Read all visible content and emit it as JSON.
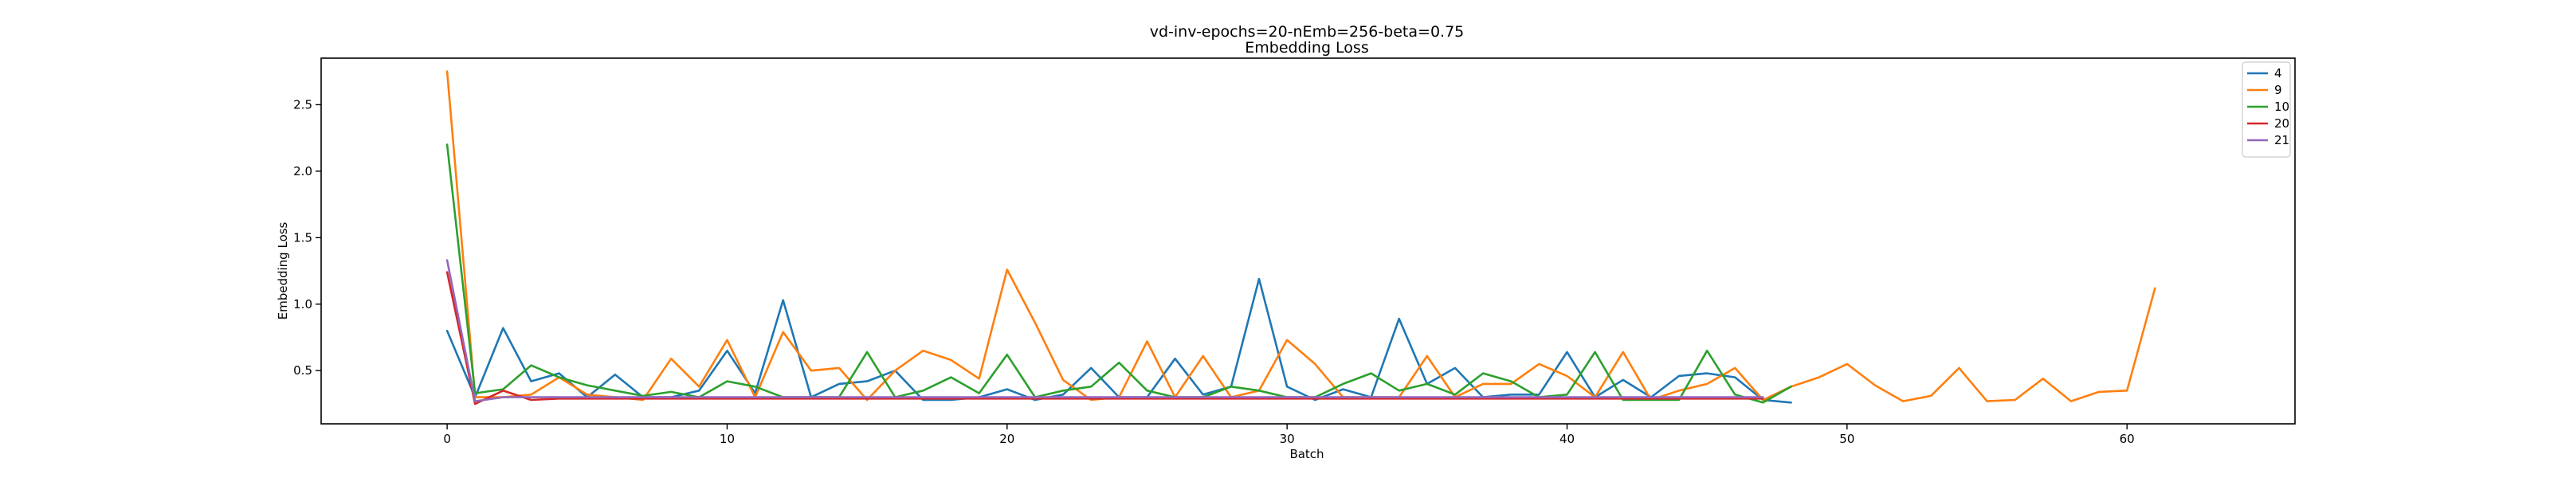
{
  "chart_data": {
    "type": "line",
    "title": "vd-inv-epochs=20-nEmb=256-beta=0.75",
    "subtitle": "Embedding Loss",
    "xlabel": "Batch",
    "ylabel": "Embedding Loss",
    "xlim": [
      -4.5,
      66
    ],
    "ylim": [
      0.1,
      2.85
    ],
    "xticks": [
      0,
      10,
      20,
      30,
      40,
      50,
      60
    ],
    "yticks": [
      0.5,
      1.0,
      1.5,
      2.0,
      2.5
    ],
    "ytick_labels": [
      "0.5",
      "1.0",
      "1.5",
      "2.0",
      "2.5"
    ],
    "grid": false,
    "legend_position": "top-right",
    "series": [
      {
        "name": "4",
        "color": "#1f77b4",
        "values": [
          0.8,
          0.3,
          0.82,
          0.42,
          0.48,
          0.3,
          0.47,
          0.3,
          0.3,
          0.35,
          0.65,
          0.33,
          1.03,
          0.3,
          0.4,
          0.42,
          0.5,
          0.28,
          0.28,
          0.3,
          0.36,
          0.28,
          0.32,
          0.52,
          0.3,
          0.3,
          0.59,
          0.32,
          0.38,
          1.19,
          0.38,
          0.28,
          0.36,
          0.3,
          0.89,
          0.4,
          0.52,
          0.3,
          0.32,
          0.32,
          0.64,
          0.3,
          0.43,
          0.3,
          0.46,
          0.48,
          0.45,
          0.28,
          0.26
        ]
      },
      {
        "name": "9",
        "color": "#ff7f0e",
        "values": [
          2.75,
          0.3,
          0.3,
          0.32,
          0.45,
          0.32,
          0.3,
          0.28,
          0.59,
          0.38,
          0.73,
          0.3,
          0.79,
          0.5,
          0.52,
          0.28,
          0.5,
          0.65,
          0.58,
          0.44,
          1.26,
          0.86,
          0.43,
          0.28,
          0.3,
          0.72,
          0.3,
          0.61,
          0.3,
          0.35,
          0.73,
          0.55,
          0.3,
          0.3,
          0.3,
          0.61,
          0.3,
          0.4,
          0.4,
          0.55,
          0.46,
          0.3,
          0.64,
          0.28,
          0.35,
          0.4,
          0.52,
          0.28,
          0.38,
          0.45,
          0.55,
          0.39,
          0.27,
          0.31,
          0.52,
          0.27,
          0.28,
          0.44,
          0.27,
          0.34,
          0.35,
          1.12
        ]
      },
      {
        "name": "10",
        "color": "#2ca02c",
        "values": [
          2.2,
          0.33,
          0.36,
          0.54,
          0.45,
          0.39,
          0.35,
          0.31,
          0.34,
          0.3,
          0.42,
          0.38,
          0.3,
          0.3,
          0.3,
          0.64,
          0.3,
          0.35,
          0.45,
          0.33,
          0.62,
          0.3,
          0.35,
          0.38,
          0.56,
          0.35,
          0.3,
          0.3,
          0.38,
          0.35,
          0.3,
          0.3,
          0.4,
          0.48,
          0.35,
          0.4,
          0.32,
          0.48,
          0.42,
          0.3,
          0.32,
          0.64,
          0.28,
          0.28,
          0.28,
          0.65,
          0.32,
          0.26,
          0.38
        ]
      },
      {
        "name": "20",
        "color": "#d62728",
        "values": [
          1.24,
          0.25,
          0.35,
          0.28,
          0.29,
          0.29,
          0.29,
          0.29,
          0.29,
          0.29,
          0.29,
          0.29,
          0.29,
          0.29,
          0.29,
          0.29,
          0.29,
          0.29,
          0.29,
          0.29,
          0.29,
          0.29,
          0.29,
          0.29,
          0.29,
          0.29,
          0.29,
          0.29,
          0.29,
          0.29,
          0.29,
          0.29,
          0.29,
          0.29,
          0.29,
          0.29,
          0.29,
          0.29,
          0.29,
          0.29,
          0.29,
          0.29,
          0.29,
          0.29,
          0.29,
          0.29,
          0.29,
          0.29
        ]
      },
      {
        "name": "21",
        "color": "#9467bd",
        "values": [
          1.33,
          0.27,
          0.3,
          0.3,
          0.3,
          0.3,
          0.3,
          0.3,
          0.3,
          0.3,
          0.3,
          0.3,
          0.3,
          0.3,
          0.3,
          0.3,
          0.3,
          0.3,
          0.3,
          0.3,
          0.3,
          0.3,
          0.3,
          0.3,
          0.3,
          0.3,
          0.3,
          0.3,
          0.3,
          0.3,
          0.3,
          0.3,
          0.3,
          0.3,
          0.3,
          0.3,
          0.3,
          0.3,
          0.3,
          0.3,
          0.3,
          0.3,
          0.3,
          0.3,
          0.3,
          0.3,
          0.3,
          0.3
        ]
      }
    ]
  }
}
